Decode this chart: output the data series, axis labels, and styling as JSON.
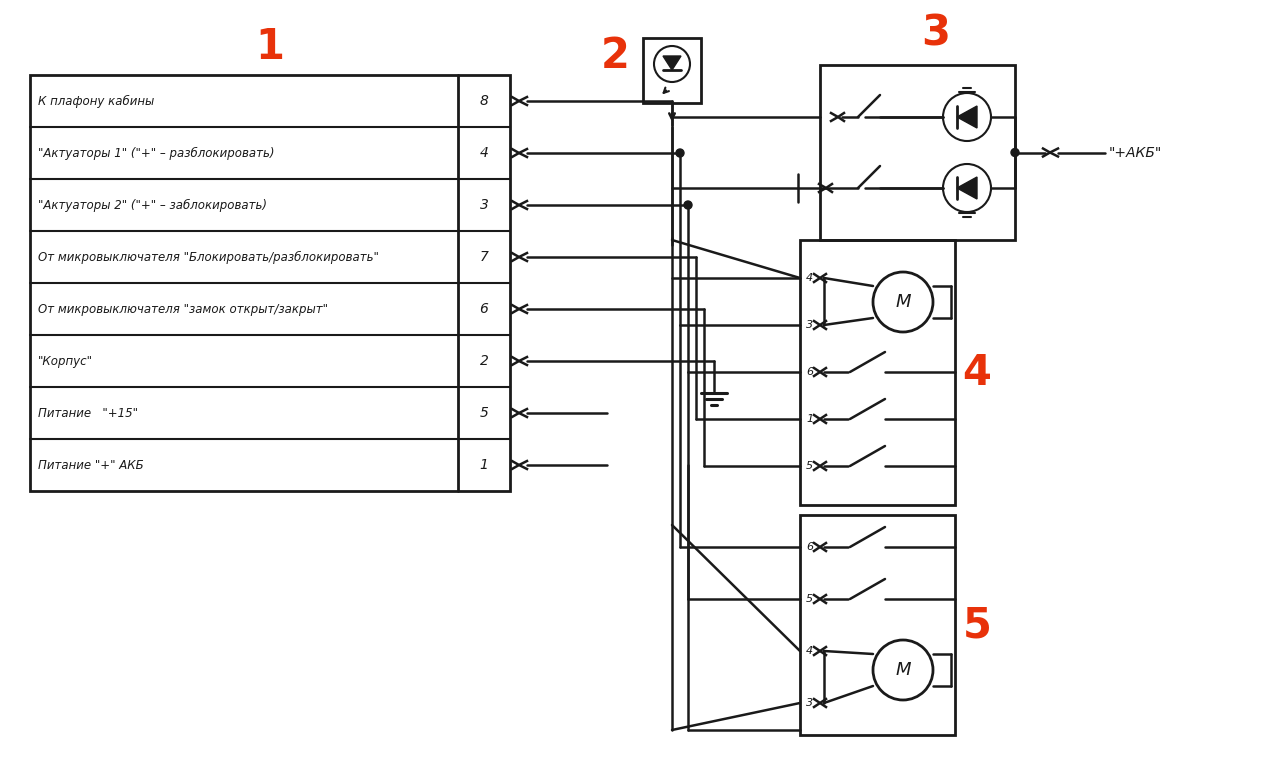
{
  "bg_color": "#ffffff",
  "line_color": "#1a1a1a",
  "red_color": "#e8320a",
  "table_rows": [
    [
      "К плафону кабины",
      "8"
    ],
    [
      "\"Актуаторы 1\" (\"+\" – разблокировать)",
      "4"
    ],
    [
      "\"Актуаторы 2\" (\"+\" – заблокировать)",
      "3"
    ],
    [
      "От микровыключателя \"Блокировать/разблокировать\"",
      "7"
    ],
    [
      "От микровыключателя \"замок открыт/закрыт\"",
      "6"
    ],
    [
      "\"Корпус\"",
      "2"
    ],
    [
      "Питание   \"+15\"",
      "5"
    ],
    [
      "Питание \"+\" АКБ",
      "1"
    ]
  ]
}
